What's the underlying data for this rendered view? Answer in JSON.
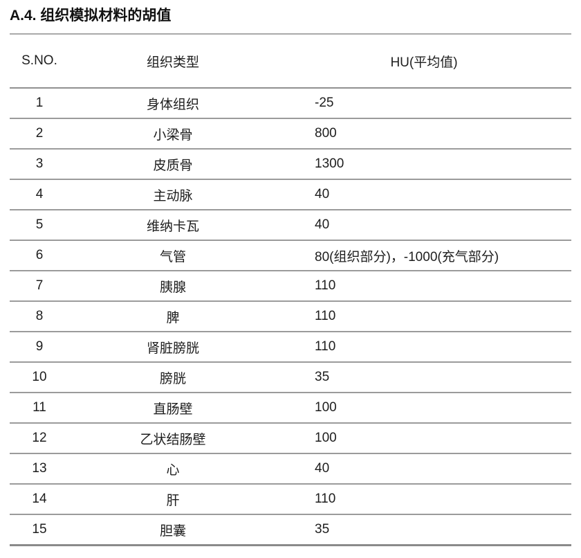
{
  "title": "A.4. 组织模拟材料的胡值",
  "colors": {
    "background": "#ffffff",
    "text": "#1d1d1d",
    "rule": "#9b9b9b"
  },
  "table": {
    "headers": [
      "S.NO.",
      "组织类型",
      "HU(平均值)"
    ],
    "rows": [
      {
        "no": "1",
        "tissue": "身体组织",
        "hu": "-25"
      },
      {
        "no": "2",
        "tissue": "小梁骨",
        "hu": "800"
      },
      {
        "no": "3",
        "tissue": "皮质骨",
        "hu": "1300"
      },
      {
        "no": "4",
        "tissue": "主动脉",
        "hu": "40"
      },
      {
        "no": "5",
        "tissue": "维纳卡瓦",
        "hu": "40"
      },
      {
        "no": "6",
        "tissue": "气管",
        "hu": "80(组织部分)，-1000(充气部分)"
      },
      {
        "no": "7",
        "tissue": "胰腺",
        "hu": "110"
      },
      {
        "no": "8",
        "tissue": "脾",
        "hu": "110"
      },
      {
        "no": "9",
        "tissue": "肾脏膀胱",
        "hu": "110"
      },
      {
        "no": "10",
        "tissue": "膀胱",
        "hu": "35"
      },
      {
        "no": "11",
        "tissue": "直肠壁",
        "hu": "100"
      },
      {
        "no": "12",
        "tissue": "乙状结肠壁",
        "hu": "100"
      },
      {
        "no": "13",
        "tissue": "心",
        "hu": "40"
      },
      {
        "no": "14",
        "tissue": "肝",
        "hu": "110"
      },
      {
        "no": "15",
        "tissue": "胆囊",
        "hu": "35"
      }
    ]
  }
}
